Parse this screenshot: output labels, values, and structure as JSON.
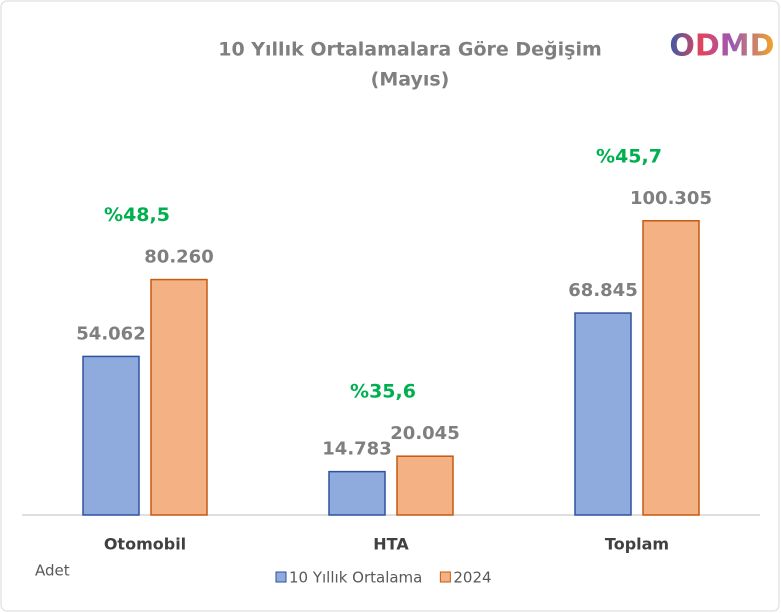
{
  "chart_data": {
    "type": "bar",
    "title": "10 Yıllık Ortalamalara  Göre Değişim",
    "subtitle": "(Mayıs)",
    "logo": "ODMD",
    "y_label": "Adet",
    "categories": [
      "Otomobil",
      "HTA",
      "Toplam"
    ],
    "series": [
      {
        "name": "10 Yıllık Ortalama",
        "color": "#8faadc",
        "values": [
          54062,
          14783,
          68845
        ],
        "value_labels": [
          "54.062",
          "14.783",
          "68.845"
        ]
      },
      {
        "name": "2024",
        "color": "#f4b183",
        "values": [
          80260,
          20045,
          100305
        ],
        "value_labels": [
          "80.260",
          "20.045",
          "100.305"
        ]
      }
    ],
    "annotations": [
      "%48,5",
      "%35,6",
      "%45,7"
    ],
    "ylim": [
      0,
      120000
    ],
    "legend": "bottom"
  }
}
